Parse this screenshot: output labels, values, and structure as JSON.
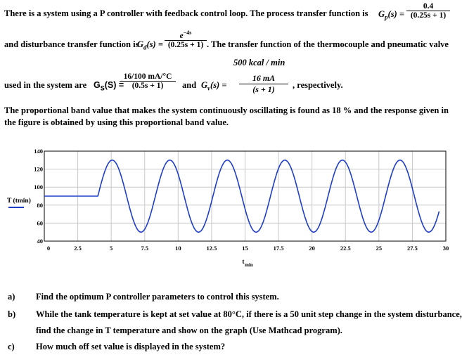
{
  "problem": {
    "line1": "There is a system using a P controller with feedback control loop. The process transfer function is",
    "gp_label": "G",
    "gp_sub": "p",
    "gp_arg": "(s) =",
    "gp_num": "0.4",
    "gp_den": "(0.25s + 1)",
    "line2_pre": "and disturbance transfer function is",
    "gd_label": "G",
    "gd_sub": "d",
    "gd_arg": "(s) =",
    "gd_num": "e",
    "gd_num_exp": "−4s",
    "gd_den": "(0.25s + 1)",
    "line2_post": ". The transfer function of the thermocouple and pneumatic valve",
    "line3_pre": "used in the system are",
    "gs_label": "G",
    "gs_sub": "S",
    "gs_arg": "(S) =",
    "gs_num": "16/100 mA/°C",
    "gs_den": "(0.5s + 1)",
    "and": "and",
    "gv_label": "G",
    "gv_sub": "v",
    "gv_arg": "(s) =",
    "gv_num_top": "500 kcal / min",
    "gv_num_bot": "16 mA",
    "gv_den": "(s + 1)",
    "respectively": ", respectively.",
    "para1": "The proportional band value that makes the system continuously oscillating is found as 18 % and the response given in",
    "para2": "the figure is obtained by using this proportional band value."
  },
  "chart_data": {
    "type": "line",
    "xlabel": "t",
    "xlabel_sub": "min",
    "ylabel": "T (tmin)",
    "xlim": [
      0,
      30
    ],
    "ylim": [
      40,
      140
    ],
    "xticks": [
      "0",
      "2.5",
      "5",
      "7.5",
      "10",
      "12.5",
      "15",
      "17.5",
      "20",
      "22.5",
      "25",
      "27.5",
      "30"
    ],
    "yticks": [
      "40",
      "60",
      "80",
      "100",
      "120",
      "140"
    ],
    "grid": true,
    "legend": "left",
    "series": [
      {
        "name": "T (tmin)",
        "color": "#1f3ec8",
        "initial_value": 90,
        "step_time": 4,
        "mean": 90,
        "amplitude": 40,
        "period": 4.3,
        "x_end": 29.5
      }
    ]
  },
  "questions": [
    {
      "letter": "a)",
      "lines": [
        "Find the optimum P controller parameters to control this system."
      ]
    },
    {
      "letter": "b)",
      "lines": [
        "While the tank temperature is kept at set value at 80°C, if there is a 50 unit step change in the system disturbance,",
        "find the change in T temperature and show on the graph (Use Mathcad program)."
      ]
    },
    {
      "letter": "c)",
      "lines": [
        "How much off set value is displayed in the system?"
      ]
    }
  ]
}
